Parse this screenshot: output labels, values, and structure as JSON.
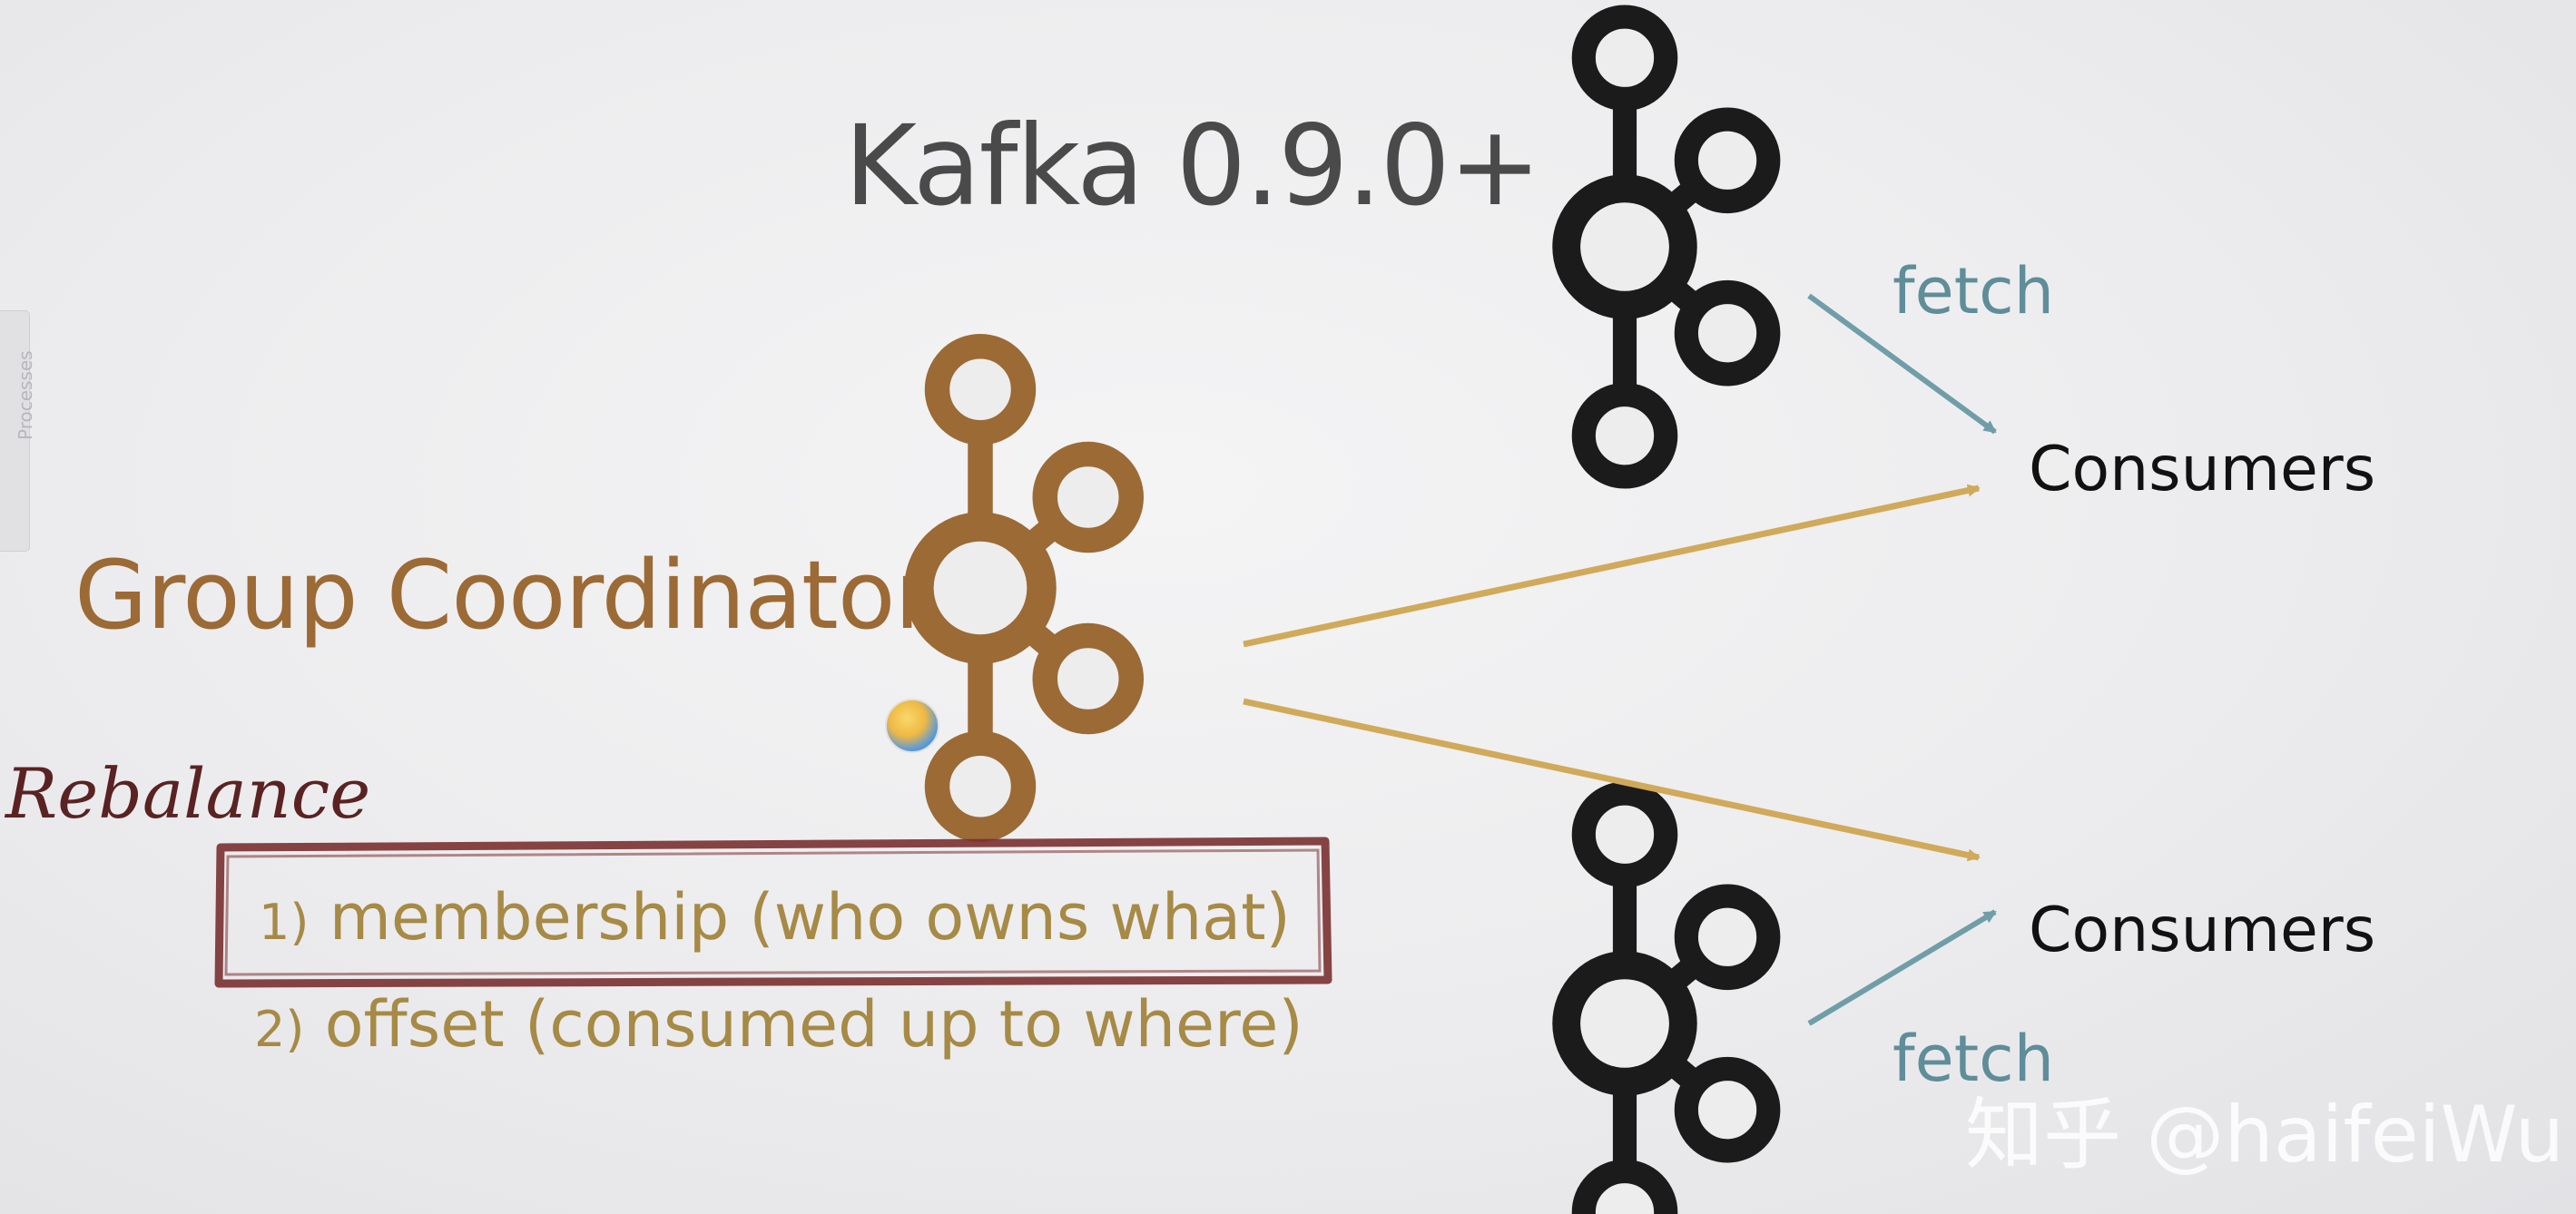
{
  "title": "Kafka 0.9.0+",
  "coordinator": {
    "label": "Group Coordinator"
  },
  "rebalance": {
    "label": "Rebalance",
    "items": [
      {
        "number": "1)",
        "text": "membership (who owns what)"
      },
      {
        "number": "2)",
        "text": "offset (consumed up to where)"
      }
    ]
  },
  "consumers": {
    "top": "Consumers",
    "bottom": "Consumers"
  },
  "fetch": {
    "top": "fetch",
    "bottom": "fetch"
  },
  "sidebar": {
    "tab_label": "Processes"
  },
  "watermark": "知乎 @haifeiWu",
  "colors": {
    "coordinator_brown": "#9c6a35",
    "broker_black": "#1b1b1b",
    "arrow_gold": "#d0aa5a",
    "arrow_teal": "#6f9ea8",
    "rebalance_box": "#7a3030"
  },
  "icons": [
    "kafka-logo-icon",
    "arrow-icon",
    "avatar-badge-icon"
  ]
}
